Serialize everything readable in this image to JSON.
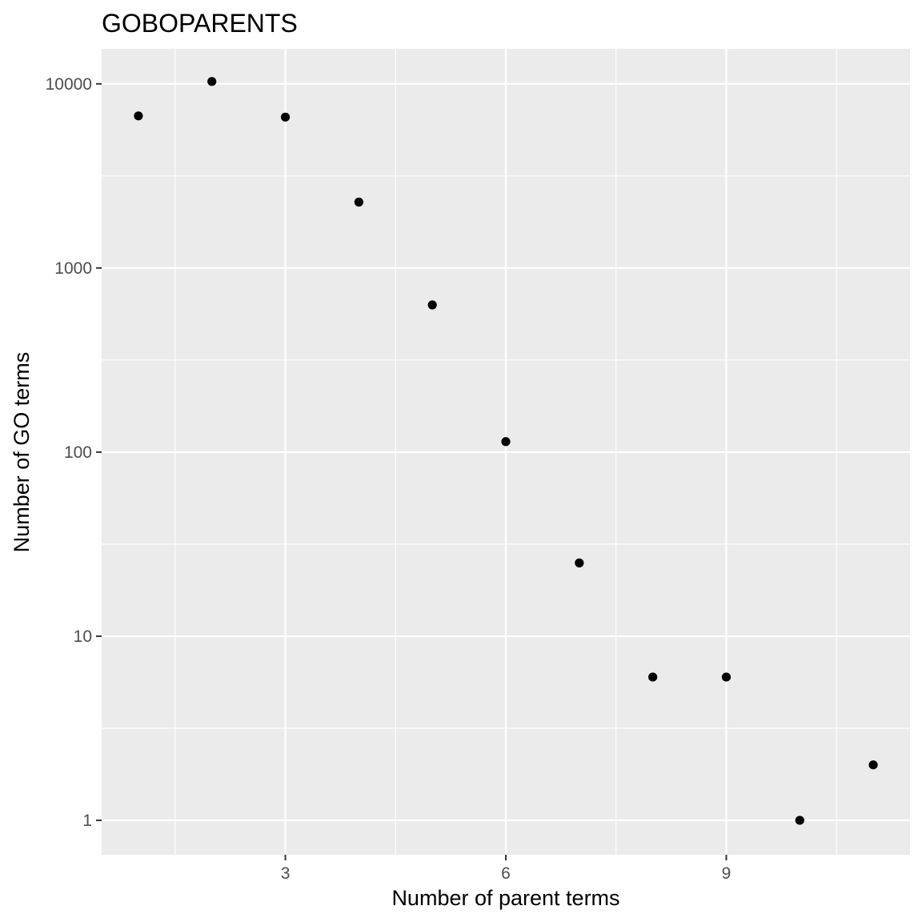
{
  "chart_data": {
    "type": "scatter",
    "title": "GOBOPARENTS",
    "xlabel": "Number of parent terms",
    "ylabel": "Number of GO terms",
    "x_scale": "linear",
    "y_scale": "log10",
    "xlim": [
      0.5,
      11.5
    ],
    "ylim": [
      0.65,
      15500
    ],
    "x_ticks": [
      3,
      6,
      9
    ],
    "x_tick_labels": [
      "3",
      "6",
      "9"
    ],
    "y_ticks": [
      1,
      10,
      100,
      1000,
      10000
    ],
    "y_tick_labels": [
      "1",
      "10",
      "100",
      "1000",
      "10000"
    ],
    "grid": true,
    "legend": "none",
    "colors": {
      "panel_background": "#ebebeb",
      "grid_line": "#ffffff",
      "point": "#000000",
      "tick_text": "#4d4d4d",
      "text": "#000000"
    },
    "points": [
      {
        "x": 1,
        "y": 6700
      },
      {
        "x": 2,
        "y": 10300
      },
      {
        "x": 3,
        "y": 6600
      },
      {
        "x": 4,
        "y": 2280
      },
      {
        "x": 5,
        "y": 630
      },
      {
        "x": 6,
        "y": 114
      },
      {
        "x": 7,
        "y": 25
      },
      {
        "x": 8,
        "y": 6
      },
      {
        "x": 9,
        "y": 6
      },
      {
        "x": 10,
        "y": 1
      },
      {
        "x": 11,
        "y": 2
      }
    ]
  }
}
